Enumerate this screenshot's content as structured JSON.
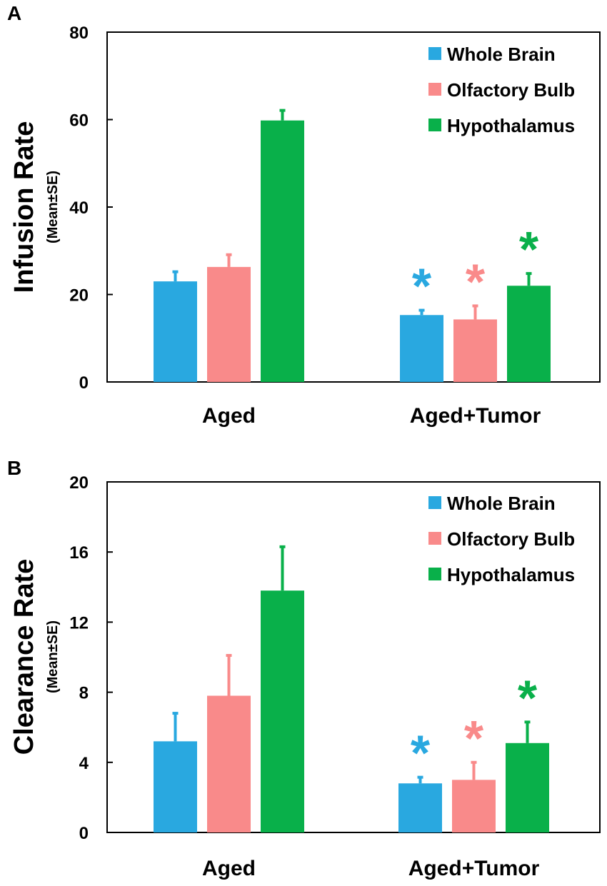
{
  "chart_data": [
    {
      "type": "bar",
      "panel": "A",
      "ylabel": "Infusion Rate",
      "ylabel_sub": "(Mean±SE)",
      "ylim": [
        0,
        80
      ],
      "yticks": [
        "0",
        "20",
        "40",
        "60",
        "80"
      ],
      "ytick_values": [
        0,
        20,
        40,
        60,
        80
      ],
      "categories": [
        "Aged",
        "Aged+Tumor"
      ],
      "series": [
        {
          "name": "Whole Brain",
          "color": "#29a8e0",
          "values": [
            23,
            15.3
          ],
          "errors": [
            2.2,
            1.1
          ],
          "significance": [
            "",
            "*"
          ]
        },
        {
          "name": "Olfactory Bulb",
          "color": "#f98a8a",
          "values": [
            26.3,
            14.3
          ],
          "errors": [
            2.8,
            3.1
          ],
          "significance": [
            "",
            "*"
          ]
        },
        {
          "name": "Hypothalamus",
          "color": "#09b04a",
          "values": [
            59.8,
            22
          ],
          "errors": [
            2.3,
            2.8
          ],
          "significance": [
            "",
            "*"
          ]
        }
      ],
      "legend": "top-right"
    },
    {
      "type": "bar",
      "panel": "B",
      "ylabel": "Clearance Rate",
      "ylabel_sub": "(Mean±SE)",
      "ylim": [
        0,
        20
      ],
      "yticks": [
        "0",
        "4",
        "8",
        "12",
        "16",
        "20"
      ],
      "ytick_values": [
        0,
        4,
        8,
        12,
        16,
        20
      ],
      "categories": [
        "Aged",
        "Aged+Tumor"
      ],
      "series": [
        {
          "name": "Whole Brain",
          "color": "#29a8e0",
          "values": [
            5.2,
            2.8
          ],
          "errors": [
            1.6,
            0.35
          ],
          "significance": [
            "",
            "*"
          ]
        },
        {
          "name": "Olfactory Bulb",
          "color": "#f98a8a",
          "values": [
            7.8,
            3.0
          ],
          "errors": [
            2.3,
            1.0
          ],
          "significance": [
            "",
            "*"
          ]
        },
        {
          "name": "Hypothalamus",
          "color": "#09b04a",
          "values": [
            13.8,
            5.1
          ],
          "errors": [
            2.5,
            1.2
          ],
          "significance": [
            "",
            "*"
          ]
        }
      ],
      "legend": "top-right"
    }
  ]
}
